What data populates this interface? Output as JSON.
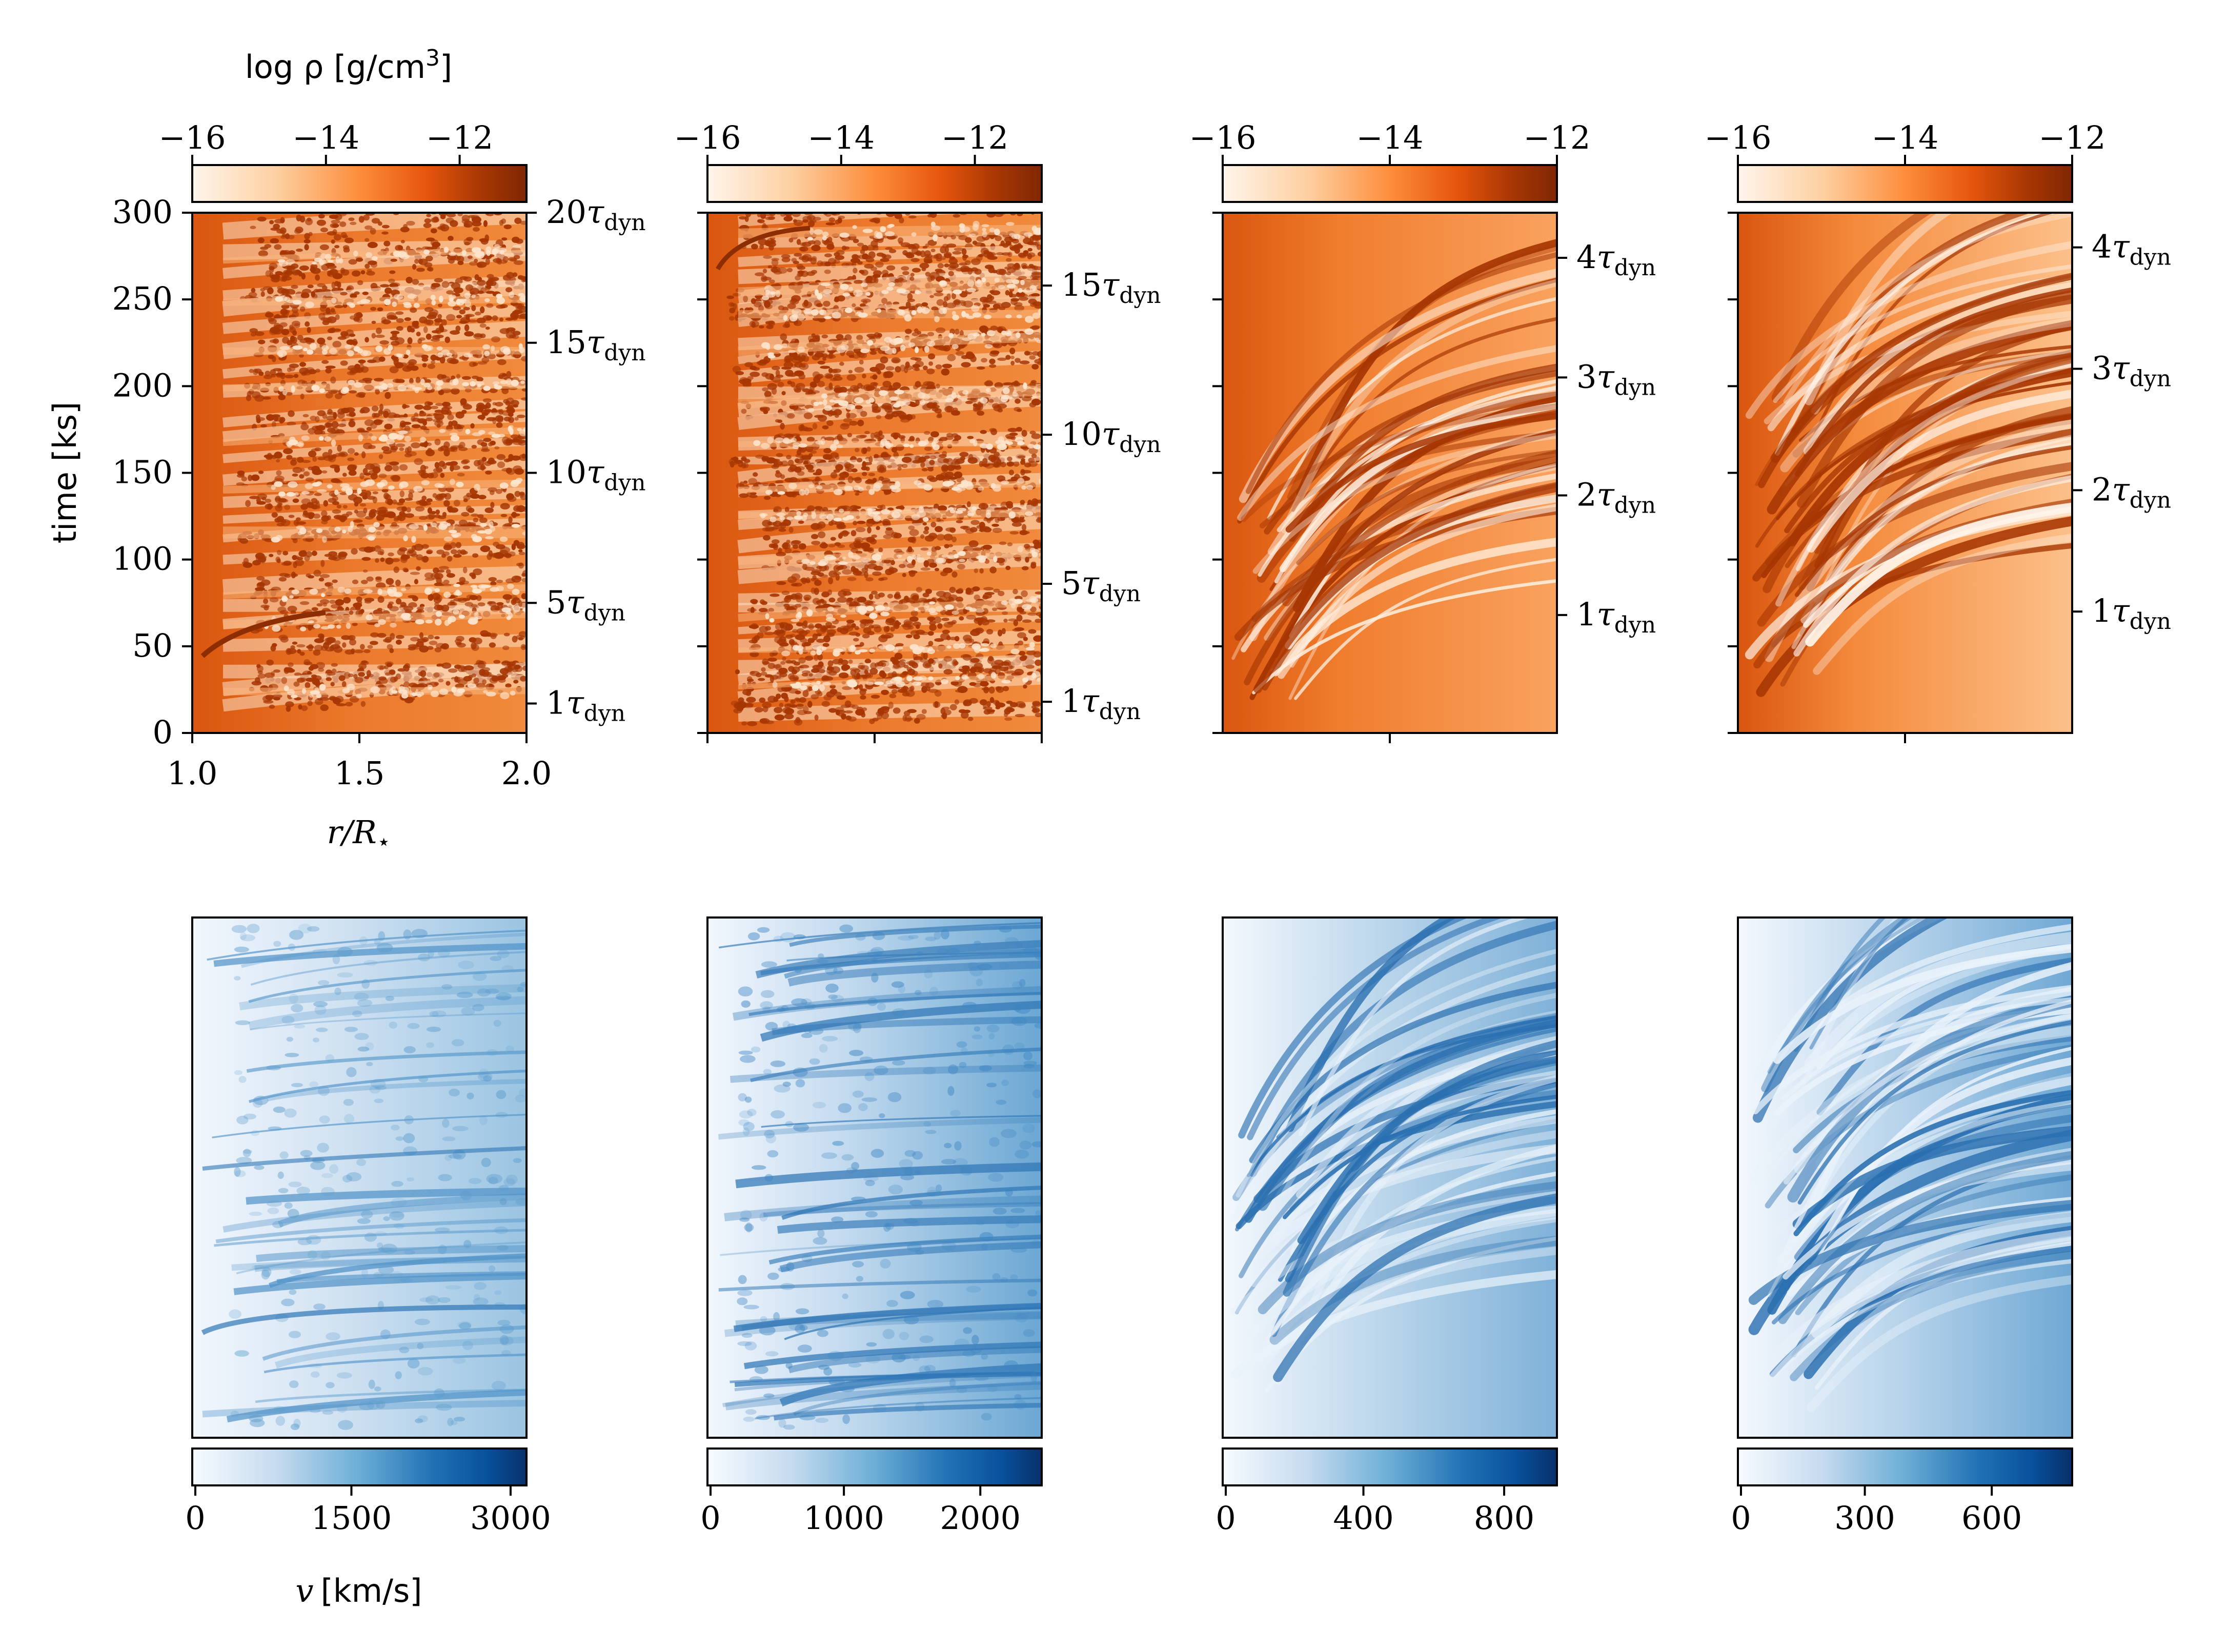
{
  "figure": {
    "colorbar_density_label": "log ρ [g/cm",
    "colorbar_density_label_exp": "3",
    "colorbar_density_label_close": "]",
    "time_axis_label": "time [ks]",
    "radius_axis_label": "r/R",
    "radius_axis_label_sub": "⋆",
    "velocity_axis_label_var": "v",
    "velocity_axis_label_units": "[km/s]",
    "tau_symbol": "τ",
    "tau_subscript": "dyn"
  },
  "colors": {
    "density_cmap": [
      "#fff5eb",
      "#fdd0a2",
      "#fd8d3c",
      "#e6550d",
      "#a63603",
      "#7f2704"
    ],
    "velocity_cmap": [
      "#f7fbff",
      "#c6dbef",
      "#6baed6",
      "#2171b5",
      "#08519c",
      "#08306b"
    ],
    "density_base": "#e8651c",
    "velocity_base": "#d6e6f4"
  },
  "chart_data": [
    {
      "type": "heatmap",
      "quantity": "log density",
      "panel": 1,
      "xlabel": "r/R⋆",
      "ylabel": "time [ks]",
      "xlim": [
        1.0,
        2.0
      ],
      "ylim": [
        0,
        300
      ],
      "xticks": [
        "1.0",
        "1.5",
        "2.0"
      ],
      "yticks": [
        "0",
        "50",
        "100",
        "150",
        "200",
        "250",
        "300"
      ],
      "colorbar": {
        "label": "log ρ [g/cm3]",
        "range": [
          -16,
          -11
        ],
        "ticks": [
          "−16",
          "−14",
          "−12"
        ]
      },
      "tau_dyn_ticks": [
        {
          "label": "1",
          "time": 17
        },
        {
          "label": "5",
          "time": 75
        },
        {
          "label": "10",
          "time": 150
        },
        {
          "label": "15",
          "time": 225
        },
        {
          "label": "20",
          "time": 300
        }
      ]
    },
    {
      "type": "heatmap",
      "quantity": "log density",
      "panel": 2,
      "ylim": [
        0,
        300
      ],
      "colorbar": {
        "range": [
          -16,
          -11
        ],
        "ticks": [
          "−16",
          "−14",
          "−12"
        ]
      },
      "tau_dyn_ticks": [
        {
          "label": "1",
          "time": 18
        },
        {
          "label": "5",
          "time": 86
        },
        {
          "label": "10",
          "time": 172
        },
        {
          "label": "15",
          "time": 258
        }
      ]
    },
    {
      "type": "heatmap",
      "quantity": "log density",
      "panel": 3,
      "ylim": [
        0,
        300
      ],
      "colorbar": {
        "range": [
          -16,
          -12
        ],
        "ticks": [
          "−16",
          "−14",
          "−12"
        ]
      },
      "tau_dyn_ticks": [
        {
          "label": "1",
          "time": 68
        },
        {
          "label": "2",
          "time": 137
        },
        {
          "label": "3",
          "time": 205
        },
        {
          "label": "4",
          "time": 274
        }
      ]
    },
    {
      "type": "heatmap",
      "quantity": "log density",
      "panel": 4,
      "ylim": [
        0,
        300
      ],
      "colorbar": {
        "range": [
          -16,
          -12
        ],
        "ticks": [
          "−16",
          "−14",
          "−12"
        ]
      },
      "tau_dyn_ticks": [
        {
          "label": "1",
          "time": 70
        },
        {
          "label": "2",
          "time": 140
        },
        {
          "label": "3",
          "time": 210
        },
        {
          "label": "4",
          "time": 280
        }
      ]
    },
    {
      "type": "heatmap",
      "quantity": "velocity",
      "panel": 1,
      "colorbar": {
        "label": "v [km/s]",
        "range": [
          0,
          3150
        ],
        "ticks": [
          "0",
          "1500",
          "3000"
        ]
      }
    },
    {
      "type": "heatmap",
      "quantity": "velocity",
      "panel": 2,
      "colorbar": {
        "range": [
          0,
          2450
        ],
        "ticks": [
          "0",
          "1000",
          "2000"
        ]
      }
    },
    {
      "type": "heatmap",
      "quantity": "velocity",
      "panel": 3,
      "colorbar": {
        "range": [
          0,
          950
        ],
        "ticks": [
          "0",
          "400",
          "800"
        ]
      }
    },
    {
      "type": "heatmap",
      "quantity": "velocity",
      "panel": 4,
      "colorbar": {
        "range": [
          0,
          790
        ],
        "ticks": [
          "0",
          "300",
          "600"
        ]
      }
    }
  ]
}
